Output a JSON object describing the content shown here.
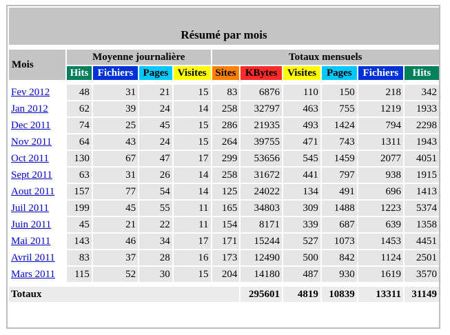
{
  "title": "Résumé par mois",
  "headers": {
    "mois": "Mois",
    "daily_avg": "Moyenne journalière",
    "monthly_totals": "Totaux mensuels",
    "daily_cols": [
      "Hits",
      "Fichiers",
      "Pages",
      "Visites"
    ],
    "monthly_cols": [
      "Sites",
      "KBytes",
      "Visites",
      "Pages",
      "Fichiers",
      "Hits"
    ]
  },
  "colors": {
    "hits": "#00805a",
    "fichiers": "#0032d7",
    "pages": "#00c8ff",
    "visites": "#ffff00",
    "sites": "#ff8000",
    "kbytes": "#ff2a2a",
    "header_gray": "#c4c4c4",
    "cell_gray": "#e6e6e6"
  },
  "rows": [
    {
      "month": "Fev 2012",
      "d_hits": "48",
      "d_fich": "31",
      "d_pages": "21",
      "d_vis": "15",
      "sites": "83",
      "kbytes": "6876",
      "visites": "110",
      "pages": "150",
      "fichiers": "218",
      "hits": "342"
    },
    {
      "month": "Jan 2012",
      "d_hits": "62",
      "d_fich": "39",
      "d_pages": "24",
      "d_vis": "14",
      "sites": "258",
      "kbytes": "32797",
      "visites": "463",
      "pages": "755",
      "fichiers": "1219",
      "hits": "1933"
    },
    {
      "month": "Dec 2011",
      "d_hits": "74",
      "d_fich": "25",
      "d_pages": "45",
      "d_vis": "15",
      "sites": "286",
      "kbytes": "21935",
      "visites": "493",
      "pages": "1424",
      "fichiers": "794",
      "hits": "2298"
    },
    {
      "month": "Nov 2011",
      "d_hits": "64",
      "d_fich": "43",
      "d_pages": "24",
      "d_vis": "15",
      "sites": "264",
      "kbytes": "39755",
      "visites": "471",
      "pages": "743",
      "fichiers": "1311",
      "hits": "1943"
    },
    {
      "month": "Oct 2011",
      "d_hits": "130",
      "d_fich": "67",
      "d_pages": "47",
      "d_vis": "17",
      "sites": "299",
      "kbytes": "53656",
      "visites": "545",
      "pages": "1459",
      "fichiers": "2077",
      "hits": "4051"
    },
    {
      "month": "Sept 2011",
      "d_hits": "63",
      "d_fich": "31",
      "d_pages": "26",
      "d_vis": "14",
      "sites": "258",
      "kbytes": "31672",
      "visites": "441",
      "pages": "797",
      "fichiers": "938",
      "hits": "1915"
    },
    {
      "month": "Aout 2011",
      "d_hits": "157",
      "d_fich": "77",
      "d_pages": "54",
      "d_vis": "14",
      "sites": "125",
      "kbytes": "24022",
      "visites": "134",
      "pages": "491",
      "fichiers": "696",
      "hits": "1413"
    },
    {
      "month": "Juil 2011",
      "d_hits": "199",
      "d_fich": "45",
      "d_pages": "55",
      "d_vis": "11",
      "sites": "165",
      "kbytes": "34803",
      "visites": "309",
      "pages": "1488",
      "fichiers": "1223",
      "hits": "5374"
    },
    {
      "month": "Juin 2011",
      "d_hits": "45",
      "d_fich": "21",
      "d_pages": "22",
      "d_vis": "11",
      "sites": "154",
      "kbytes": "8171",
      "visites": "339",
      "pages": "687",
      "fichiers": "639",
      "hits": "1358"
    },
    {
      "month": "Mai 2011",
      "d_hits": "143",
      "d_fich": "46",
      "d_pages": "34",
      "d_vis": "17",
      "sites": "171",
      "kbytes": "15244",
      "visites": "527",
      "pages": "1073",
      "fichiers": "1453",
      "hits": "4451"
    },
    {
      "month": "Avril 2011",
      "d_hits": "83",
      "d_fich": "37",
      "d_pages": "28",
      "d_vis": "16",
      "sites": "173",
      "kbytes": "12490",
      "visites": "500",
      "pages": "842",
      "fichiers": "1124",
      "hits": "2501"
    },
    {
      "month": "Mars 2011",
      "d_hits": "115",
      "d_fich": "52",
      "d_pages": "30",
      "d_vis": "15",
      "sites": "204",
      "kbytes": "14180",
      "visites": "487",
      "pages": "930",
      "fichiers": "1619",
      "hits": "3570"
    }
  ],
  "totals": {
    "label": "Totaux",
    "kbytes": "295601",
    "visites": "4819",
    "pages": "10839",
    "fichiers": "13311",
    "hits": "31149"
  }
}
